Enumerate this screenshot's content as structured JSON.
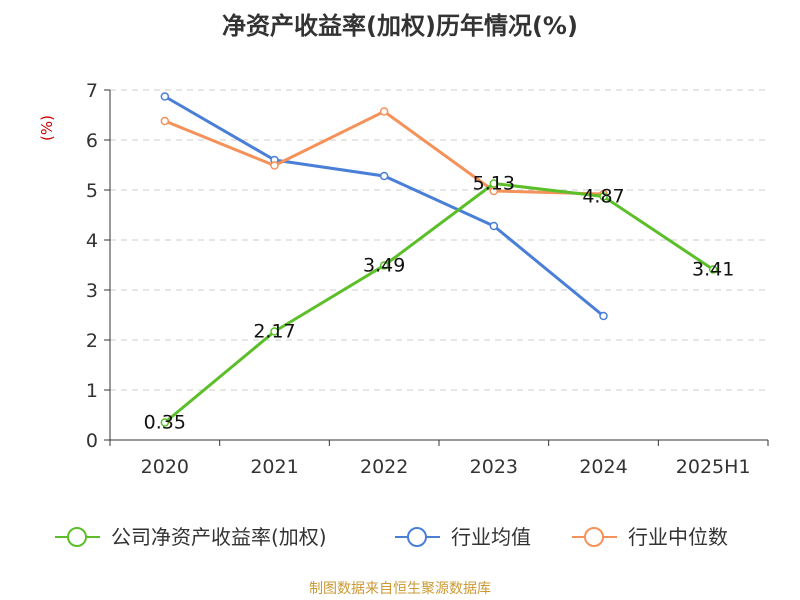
{
  "chart_data": {
    "type": "line",
    "title": "净资产收益率(加权)历年情况(%)",
    "ylabel": "(%)",
    "categories": [
      "2020",
      "2021",
      "2022",
      "2023",
      "2024",
      "2025H1"
    ],
    "ylim": [
      0,
      7
    ],
    "yticks": [
      0,
      1,
      2,
      3,
      4,
      5,
      6,
      7
    ],
    "grid": true,
    "legend_position": "bottom",
    "series": [
      {
        "name": "公司净资产收益率(加权)",
        "color": "#5cbf2a",
        "values": [
          0.35,
          2.17,
          3.49,
          5.13,
          4.87,
          3.41
        ],
        "show_labels": true
      },
      {
        "name": "行业均值",
        "color": "#4a7fd8",
        "values": [
          6.87,
          5.6,
          5.28,
          4.28,
          2.48,
          null
        ],
        "show_labels": false
      },
      {
        "name": "行业中位数",
        "color": "#f5925a",
        "values": [
          6.38,
          5.49,
          6.57,
          4.98,
          4.92,
          null
        ],
        "show_labels": false
      }
    ]
  },
  "source": "制图数据来自恒生聚源数据库"
}
